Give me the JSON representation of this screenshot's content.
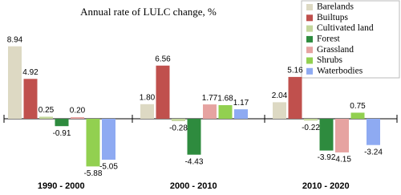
{
  "chart_data": {
    "type": "bar",
    "title": "Annual rate of LULC  change, %",
    "categories": [
      "1990 - 2000",
      "2000 - 2010",
      "2010 - 2020"
    ],
    "series": [
      {
        "name": "Barelands",
        "color": "#ddd9c3",
        "values": [
          8.94,
          1.8,
          2.04
        ],
        "value_labels": [
          "8.94",
          "1.80",
          "2.04"
        ]
      },
      {
        "name": "Builtups",
        "color": "#c0504d",
        "values": [
          4.92,
          6.56,
          5.16
        ],
        "value_labels": [
          "4.92",
          "6.56",
          "5.16"
        ]
      },
      {
        "name": "Cultivated land",
        "color": "#c3d69b",
        "values": [
          0.25,
          -0.28,
          -0.22
        ],
        "value_labels": [
          "0.25",
          "-0.28",
          "-0.22"
        ]
      },
      {
        "name": "Forest",
        "color": "#2e8b3e",
        "values": [
          -0.91,
          -4.43,
          -3.92
        ],
        "value_labels": [
          "-0.91",
          "-4.43",
          "-3.92"
        ]
      },
      {
        "name": "Grassland",
        "color": "#e6a3a1",
        "values": [
          0.2,
          1.77,
          -4.15
        ],
        "value_labels": [
          "0.20",
          "1.77",
          "-4.15"
        ]
      },
      {
        "name": "Shrubs",
        "color": "#92d050",
        "values": [
          -5.88,
          1.68,
          0.75
        ],
        "value_labels": [
          "-5.88",
          "1.68",
          "0.75"
        ]
      },
      {
        "name": "Waterbodies",
        "color": "#8eaaf2",
        "values": [
          -5.05,
          1.17,
          -3.24
        ],
        "value_labels": [
          "-5.05",
          "1.17",
          "-3.24"
        ]
      }
    ]
  }
}
